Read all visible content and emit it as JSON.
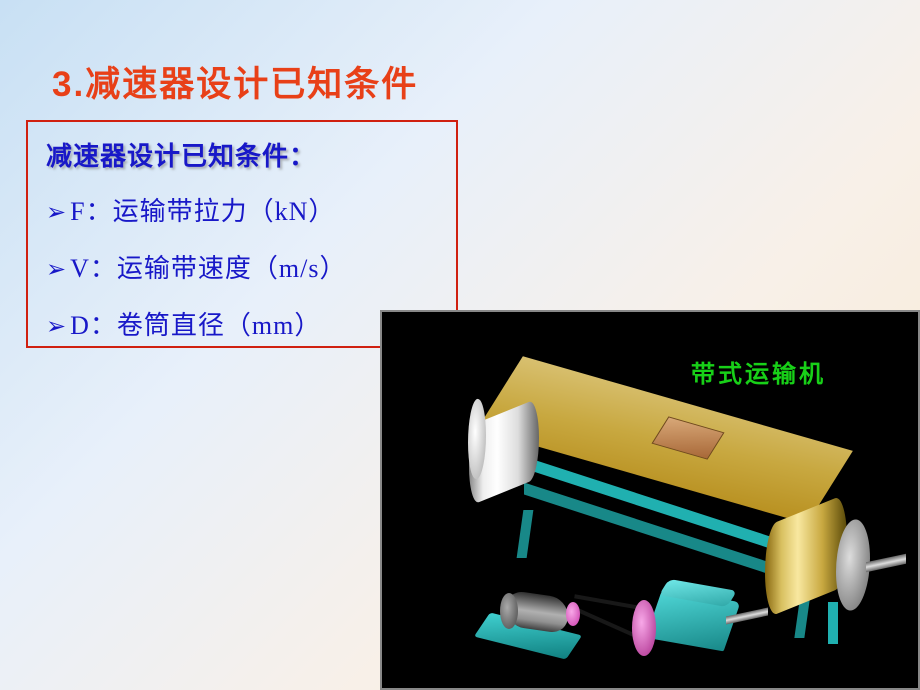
{
  "slide": {
    "title": "3.减速器设计已知条件",
    "title_color": "#e84018",
    "title_fontsize": 35,
    "background_gradient": [
      "#c8e0f4",
      "#e8f0fa",
      "#f8f0e8",
      "#f8e8d0"
    ]
  },
  "conditions_box": {
    "heading": "减速器设计已知条件：",
    "heading_color": "#1818c8",
    "border_color": "#d02010",
    "items": [
      "F：运输带拉力（kN）",
      "V：运输带速度（m/s）",
      "D：卷筒直径（mm）"
    ],
    "bullet_color": "#1818c8",
    "text_color": "#1818c8",
    "text_fontsize": 26
  },
  "conveyor_image": {
    "caption": "带式运输机",
    "caption_color": "#18d018",
    "background_color": "#000000",
    "belt_color": "#c8a840",
    "frame_color": "#20b0b0",
    "pulley_color": "#c838a8",
    "motor_color": "#808080",
    "drum_color_light": "#e8e8e8",
    "package_color": "#b87848"
  }
}
